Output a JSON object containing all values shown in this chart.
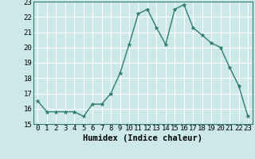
{
  "x": [
    0,
    1,
    2,
    3,
    4,
    5,
    6,
    7,
    8,
    9,
    10,
    11,
    12,
    13,
    14,
    15,
    16,
    17,
    18,
    19,
    20,
    21,
    22,
    23
  ],
  "y": [
    16.5,
    15.8,
    15.8,
    15.8,
    15.8,
    15.5,
    16.3,
    16.3,
    17.0,
    18.3,
    20.2,
    22.2,
    22.5,
    21.3,
    20.2,
    22.5,
    22.8,
    21.3,
    20.8,
    20.3,
    20.0,
    18.7,
    17.5,
    15.5
  ],
  "xlabel": "Humidex (Indice chaleur)",
  "xlim": [
    -0.5,
    23.5
  ],
  "ylim": [
    15,
    23
  ],
  "yticks": [
    15,
    16,
    17,
    18,
    19,
    20,
    21,
    22,
    23
  ],
  "xticks": [
    0,
    1,
    2,
    3,
    4,
    5,
    6,
    7,
    8,
    9,
    10,
    11,
    12,
    13,
    14,
    15,
    16,
    17,
    18,
    19,
    20,
    21,
    22,
    23
  ],
  "line_color": "#2e7d6e",
  "marker": "*",
  "marker_size": 3.5,
  "bg_color": "#cce8e8",
  "grid_color": "#ffffff",
  "xlabel_fontsize": 7.5,
  "tick_fontsize": 6.5,
  "spine_color": "#2e7d6e"
}
